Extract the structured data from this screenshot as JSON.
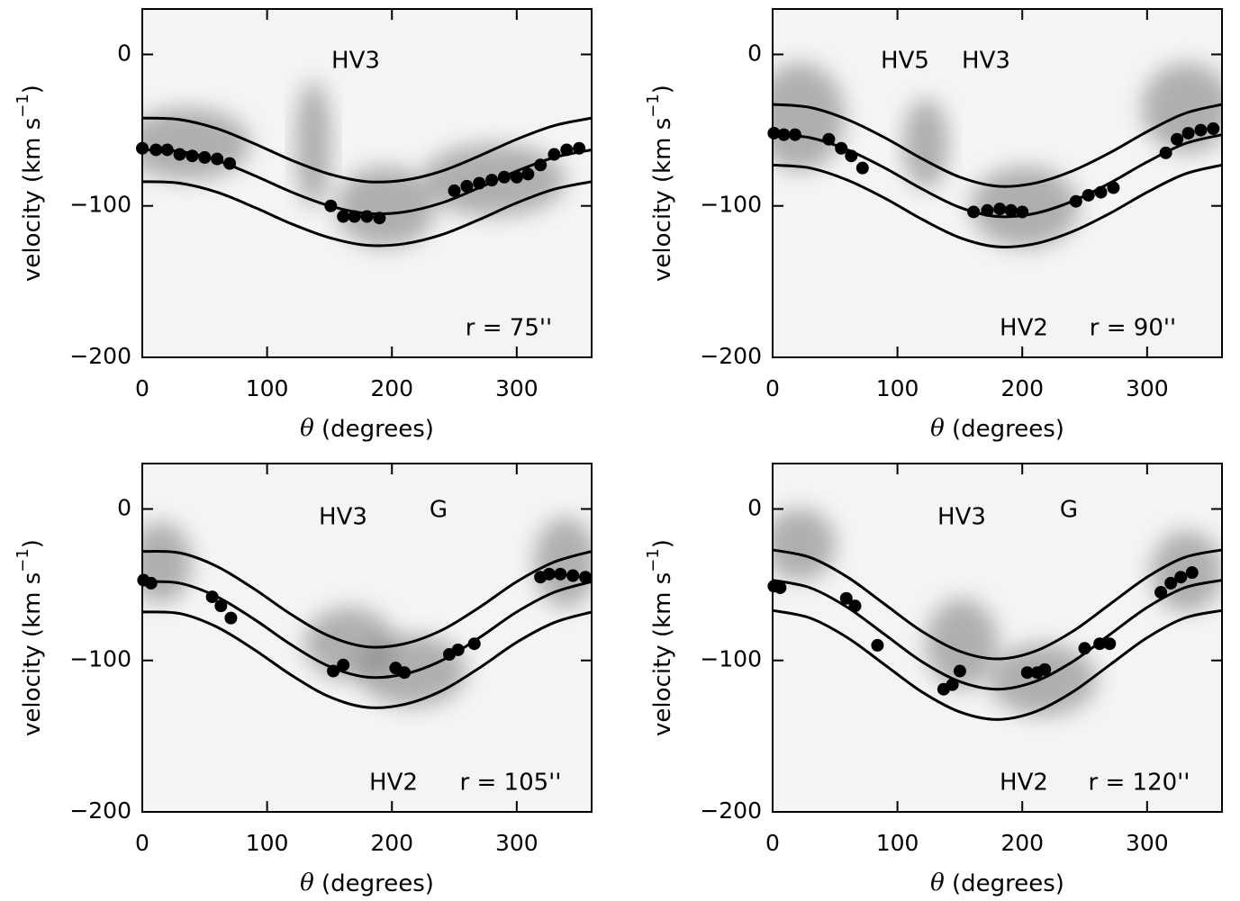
{
  "chart_data": [
    {
      "type": "scatter",
      "xlabel": [
        "θ",
        " (degrees)"
      ],
      "ylabel": [
        "velocity (km s",
        "−1",
        ")"
      ],
      "xlim": [
        0,
        360
      ],
      "ylim": [
        -200,
        30
      ],
      "xticks": [
        0,
        100,
        200,
        300
      ],
      "yticks": [
        0,
        {
          "value": -100,
          "label": "−100"
        },
        {
          "value": -200,
          "label": "−200"
        }
      ],
      "annotations": [
        "HV3",
        "r = 75''"
      ],
      "x": [
        0,
        11,
        20,
        30,
        40,
        50,
        60,
        70,
        151,
        161,
        170,
        180,
        190,
        250,
        260,
        270,
        280,
        290,
        300,
        309,
        319,
        330,
        340,
        350
      ],
      "values": [
        -62,
        -63,
        -63,
        -66,
        -67,
        -68,
        -69,
        -72,
        -100,
        -107,
        -107,
        -107,
        -108,
        -90,
        -87,
        -85,
        -83,
        -81,
        -81,
        -79,
        -73,
        -66,
        -63,
        -62
      ],
      "color": "#000000",
      "curve_x": [
        0,
        30,
        60,
        90,
        120,
        150,
        180,
        210,
        240,
        270,
        300,
        330,
        360
      ],
      "series": [
        {
          "color": "#000000",
          "values": [
            -42,
            -43,
            -49,
            -59,
            -70,
            -79,
            -84,
            -83,
            -77,
            -67,
            -56,
            -47,
            -42
          ]
        },
        {
          "color": "#000000",
          "values": [
            -63,
            -64,
            -70,
            -80,
            -91,
            -100,
            -105,
            -104,
            -98,
            -88,
            -77,
            -68,
            -63
          ]
        },
        {
          "color": "#000000",
          "values": [
            -84,
            -85,
            -91,
            -101,
            -112,
            -121,
            -126,
            -125,
            -119,
            -109,
            -98,
            -89,
            -84
          ]
        }
      ]
    },
    {
      "type": "scatter",
      "xlabel": [
        "θ",
        " (degrees)"
      ],
      "ylabel": [
        "velocity (km s",
        "−1",
        ")"
      ],
      "xlim": [
        0,
        360
      ],
      "ylim": [
        -200,
        30
      ],
      "xticks": [
        0,
        100,
        200,
        300
      ],
      "yticks": [
        0,
        {
          "value": -100,
          "label": "−100"
        },
        {
          "value": -200,
          "label": "−200"
        }
      ],
      "annotations": [
        "HV5",
        "HV3",
        "HV2",
        "r = 90''"
      ],
      "x": [
        1,
        9,
        18,
        45,
        55,
        63,
        72,
        161,
        172,
        182,
        191,
        200,
        243,
        253,
        263,
        273,
        315,
        324,
        333,
        343,
        353
      ],
      "values": [
        -52,
        -53,
        -53,
        -56,
        -62,
        -67,
        -75,
        -104,
        -103,
        -102,
        -103,
        -104,
        -97,
        -93,
        -91,
        -88,
        -65,
        -56,
        -52,
        -50,
        -49
      ],
      "color": "#000000",
      "curve_x": [
        0,
        30,
        60,
        90,
        120,
        150,
        180,
        210,
        240,
        270,
        300,
        330,
        360
      ],
      "series": [
        {
          "color": "#000000",
          "values": [
            -33,
            -35,
            -43,
            -55,
            -69,
            -81,
            -87,
            -85,
            -77,
            -65,
            -51,
            -39,
            -33
          ]
        },
        {
          "color": "#000000",
          "values": [
            -53,
            -55,
            -63,
            -75,
            -89,
            -101,
            -107,
            -105,
            -97,
            -85,
            -71,
            -59,
            -53
          ]
        },
        {
          "color": "#000000",
          "values": [
            -73,
            -75,
            -83,
            -95,
            -109,
            -121,
            -127,
            -125,
            -117,
            -105,
            -91,
            -79,
            -73
          ]
        }
      ]
    },
    {
      "type": "scatter",
      "xlabel": [
        "θ",
        " (degrees)"
      ],
      "ylabel": [
        "velocity (km s",
        "−1",
        ")"
      ],
      "xlim": [
        0,
        360
      ],
      "ylim": [
        -200,
        30
      ],
      "xticks": [
        0,
        100,
        200,
        300
      ],
      "yticks": [
        0,
        {
          "value": -100,
          "label": "−100"
        },
        {
          "value": -200,
          "label": "−200"
        }
      ],
      "annotations": [
        "HV3",
        "G",
        "HV2",
        "r = 105''"
      ],
      "x": [
        1,
        7,
        56,
        63,
        71,
        153,
        161,
        203,
        210,
        246,
        253,
        266,
        319,
        326,
        335,
        345,
        355
      ],
      "values": [
        -47,
        -49,
        -58,
        -64,
        -72,
        -107,
        -103,
        -105,
        -108,
        -96,
        -93,
        -89,
        -45,
        -43,
        -43,
        -44,
        -45
      ],
      "color": "#000000",
      "curve_x": [
        0,
        30,
        60,
        90,
        120,
        150,
        180,
        210,
        240,
        270,
        300,
        330,
        360
      ],
      "series": [
        {
          "color": "#000000",
          "values": [
            -28,
            -29,
            -38,
            -53,
            -70,
            -84,
            -91,
            -89,
            -80,
            -65,
            -48,
            -35,
            -28
          ]
        },
        {
          "color": "#000000",
          "values": [
            -48,
            -49,
            -58,
            -73,
            -90,
            -104,
            -111,
            -109,
            -100,
            -85,
            -68,
            -55,
            -48
          ]
        },
        {
          "color": "#000000",
          "values": [
            -68,
            -69,
            -78,
            -93,
            -110,
            -124,
            -131,
            -129,
            -120,
            -105,
            -88,
            -75,
            -68
          ]
        }
      ]
    },
    {
      "type": "scatter",
      "xlabel": [
        "θ",
        " (degrees)"
      ],
      "ylabel": [
        "velocity (km s",
        "−1",
        ")"
      ],
      "xlim": [
        0,
        360
      ],
      "ylim": [
        -200,
        30
      ],
      "xticks": [
        0,
        100,
        200,
        300
      ],
      "yticks": [
        0,
        {
          "value": -100,
          "label": "−100"
        },
        {
          "value": -200,
          "label": "−200"
        }
      ],
      "annotations": [
        "HV3",
        "G",
        "HV2",
        "r = 120''"
      ],
      "x": [
        1,
        6,
        59,
        66,
        84,
        137,
        144,
        150,
        204,
        212,
        218,
        250,
        262,
        270,
        311,
        319,
        327,
        336
      ],
      "values": [
        -51,
        -52,
        -59,
        -64,
        -90,
        -119,
        -116,
        -107,
        -108,
        -108,
        -106,
        -92,
        -89,
        -89,
        -55,
        -49,
        -45,
        -42
      ],
      "color": "#000000",
      "curve_x": [
        0,
        30,
        60,
        90,
        120,
        150,
        180,
        210,
        240,
        270,
        300,
        330,
        360
      ],
      "series": [
        {
          "color": "#000000",
          "values": [
            -27,
            -32,
            -45,
            -63,
            -81,
            -94,
            -99,
            -94,
            -81,
            -63,
            -45,
            -32,
            -27
          ]
        },
        {
          "color": "#000000",
          "values": [
            -47,
            -52,
            -65,
            -83,
            -101,
            -114,
            -119,
            -114,
            -101,
            -83,
            -65,
            -52,
            -47
          ]
        },
        {
          "color": "#000000",
          "values": [
            -67,
            -72,
            -85,
            -103,
            -121,
            -134,
            -139,
            -134,
            -121,
            -103,
            -85,
            -72,
            -67
          ]
        }
      ]
    }
  ]
}
